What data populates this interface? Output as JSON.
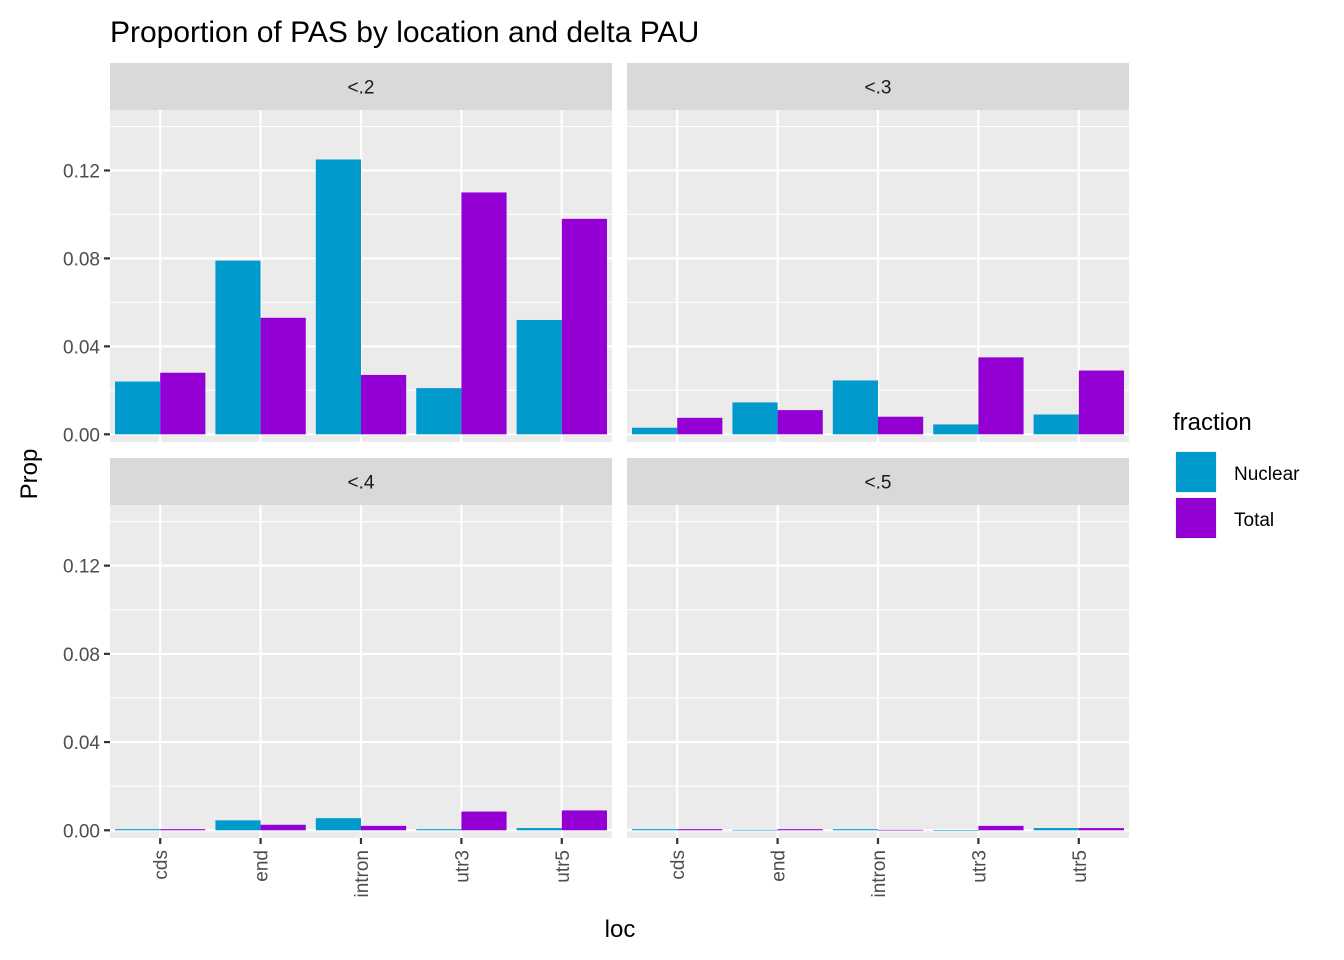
{
  "chart_data": {
    "type": "bar",
    "title": "Proportion of PAS by location and delta PAU",
    "xlabel": "loc",
    "ylabel": "Prop",
    "categories": [
      "cds",
      "end",
      "intron",
      "utr3",
      "utr5"
    ],
    "ylim": [
      -0.0035,
      0.1475
    ],
    "yticks": [
      0.0,
      0.04,
      0.08,
      0.12
    ],
    "ytick_labels": [
      "0.00",
      "0.04",
      "0.08",
      "0.12"
    ],
    "grid": true,
    "legend": {
      "title": "fraction",
      "position": "right",
      "entries": [
        {
          "name": "Nuclear",
          "color": "#009ACD"
        },
        {
          "name": "Total",
          "color": "#9400D3"
        }
      ]
    },
    "facets": [
      {
        "label": "<.2",
        "series": [
          {
            "name": "Nuclear",
            "values": [
              0.024,
              0.079,
              0.125,
              0.021,
              0.052
            ]
          },
          {
            "name": "Total",
            "values": [
              0.028,
              0.053,
              0.027,
              0.11,
              0.098
            ]
          }
        ]
      },
      {
        "label": "<.3",
        "series": [
          {
            "name": "Nuclear",
            "values": [
              0.003,
              0.0145,
              0.0245,
              0.0045,
              0.009
            ]
          },
          {
            "name": "Total",
            "values": [
              0.0075,
              0.011,
              0.008,
              0.035,
              0.029
            ]
          }
        ]
      },
      {
        "label": "<.4",
        "series": [
          {
            "name": "Nuclear",
            "values": [
              0.0005,
              0.0045,
              0.0055,
              0.0005,
              0.001
            ]
          },
          {
            "name": "Total",
            "values": [
              0.0005,
              0.0025,
              0.002,
              0.0085,
              0.009
            ]
          }
        ]
      },
      {
        "label": "<.5",
        "series": [
          {
            "name": "Nuclear",
            "values": [
              0.0005,
              0.0002,
              0.0005,
              0.0,
              0.001
            ]
          },
          {
            "name": "Total",
            "values": [
              0.0005,
              0.0005,
              0.0002,
              0.002,
              0.001
            ]
          }
        ]
      }
    ]
  }
}
